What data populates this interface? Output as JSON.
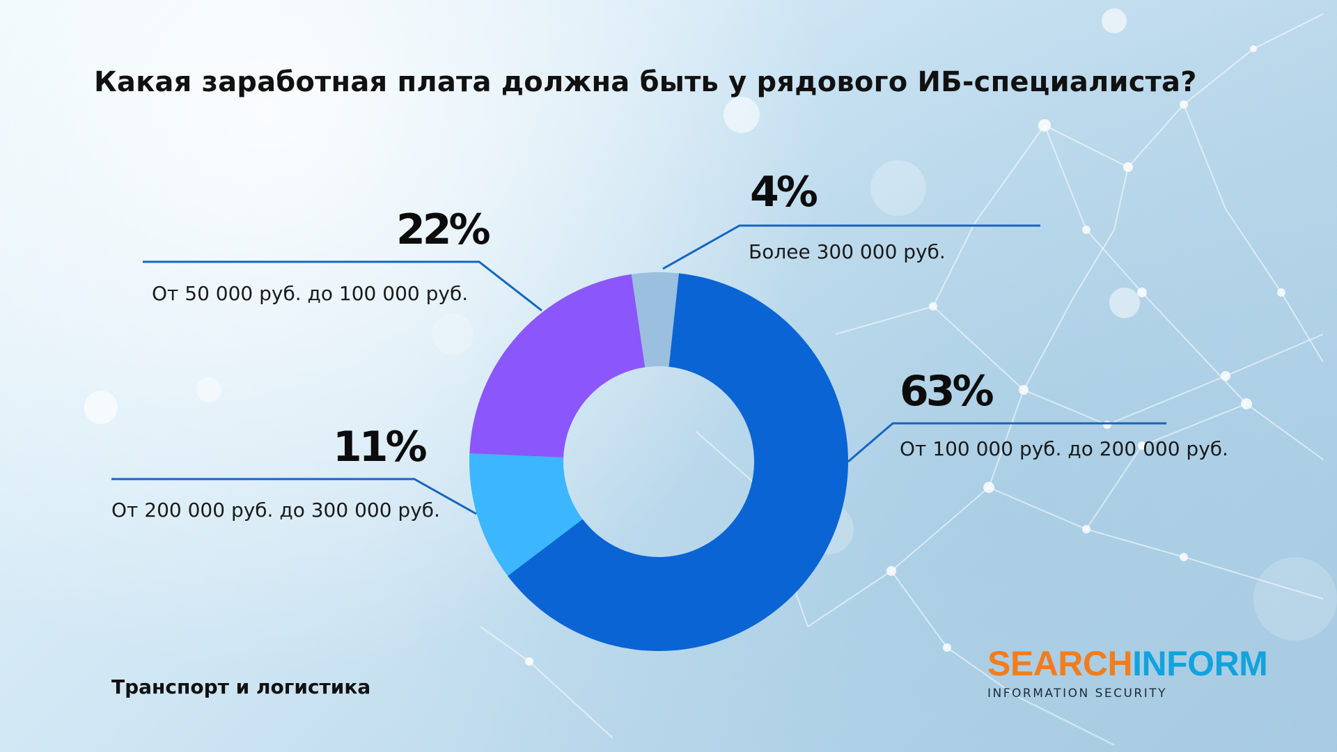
{
  "title": "Какая заработная плата должна быть у рядового ИБ-специалиста?",
  "footer": "Транспорт и логистика",
  "logo": {
    "part_orange": "SEARCH",
    "part_blue": "INFORM",
    "subtitle": "INFORMATION SECURITY"
  },
  "colors": {
    "slice_100_200": "#0a64d4",
    "slice_200_300": "#3bb6ff",
    "slice_50_100": "#8b56fb",
    "slice_300_plus": "#9bbfdf",
    "leader_line": "#1565c0",
    "logo_orange": "#f27d1c",
    "logo_blue": "#12a3dd"
  },
  "chart_data": {
    "type": "pie",
    "title": "Какая заработная плата должна быть у рядового ИБ-специалиста?",
    "donut": true,
    "unit": "%",
    "slices": [
      {
        "label": "Более 300 000 руб.",
        "value": 4,
        "display": "4%"
      },
      {
        "label": "От 100 000 руб. до 200 000 руб.",
        "value": 63,
        "display": "63%"
      },
      {
        "label": "От 200 000 руб. до 300 000 руб.",
        "value": 11,
        "display": "11%"
      },
      {
        "label": "От 50 000 руб. до 100 000 руб.",
        "value": 22,
        "display": "22%"
      }
    ]
  }
}
